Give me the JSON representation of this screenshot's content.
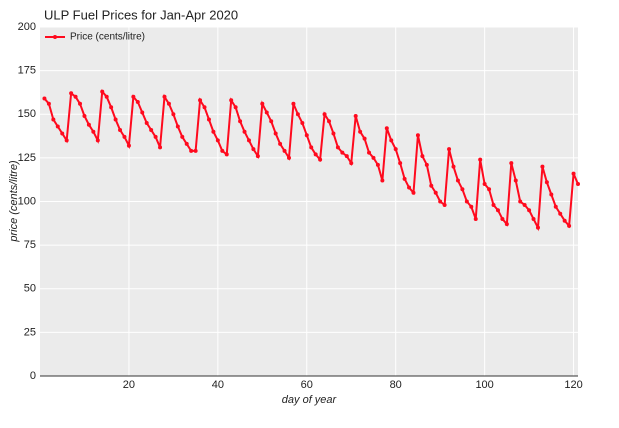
{
  "chart_data": {
    "type": "line",
    "title": "ULP Fuel Prices for Jan-Apr 2020",
    "xlabel": "day of year",
    "ylabel": "price (cents/litre)",
    "x": [
      1,
      2,
      3,
      4,
      5,
      6,
      7,
      8,
      9,
      10,
      11,
      12,
      13,
      14,
      15,
      16,
      17,
      18,
      19,
      20,
      21,
      22,
      23,
      24,
      25,
      26,
      27,
      28,
      29,
      30,
      31,
      32,
      33,
      34,
      35,
      36,
      37,
      38,
      39,
      40,
      41,
      42,
      43,
      44,
      45,
      46,
      47,
      48,
      49,
      50,
      51,
      52,
      53,
      54,
      55,
      56,
      57,
      58,
      59,
      60,
      61,
      62,
      63,
      64,
      65,
      66,
      67,
      68,
      69,
      70,
      71,
      72,
      73,
      74,
      75,
      76,
      77,
      78,
      79,
      80,
      81,
      82,
      83,
      84,
      85,
      86,
      87,
      88,
      89,
      90,
      91,
      92,
      93,
      94,
      95,
      96,
      97,
      98,
      99,
      100,
      101,
      102,
      103,
      104,
      105,
      106,
      107,
      108,
      109,
      110,
      111,
      112,
      113,
      114,
      115,
      116,
      117,
      118,
      119,
      120,
      121
    ],
    "series": [
      {
        "name": "Price (cents/litre)",
        "color": "#ff0a1e",
        "values": [
          159,
          156,
          147,
          143,
          139,
          135,
          162,
          160,
          156,
          149,
          144,
          140,
          135,
          163,
          160,
          154,
          147,
          141,
          137,
          132,
          160,
          157,
          151,
          145,
          141,
          137,
          131,
          160,
          156,
          150,
          143,
          137,
          133,
          129,
          129,
          158,
          154,
          147,
          140,
          135,
          129,
          127,
          158,
          154,
          146,
          140,
          135,
          130,
          126,
          156,
          151,
          146,
          139,
          133,
          129,
          125,
          156,
          150,
          145,
          138,
          131,
          127,
          124,
          150,
          146,
          139,
          131,
          128,
          126,
          122,
          149,
          140,
          136,
          128,
          125,
          121,
          112,
          142,
          135,
          130,
          122,
          113,
          108,
          105,
          138,
          126,
          121,
          109,
          105,
          100,
          98,
          130,
          120,
          112,
          107,
          100,
          97,
          90,
          124,
          110,
          107,
          98,
          95,
          90,
          87,
          122,
          112,
          100,
          98,
          95,
          90,
          85,
          120,
          111,
          104,
          97,
          93,
          89,
          86,
          116,
          110
        ]
      }
    ],
    "xlim": [
      0,
      121
    ],
    "ylim": [
      0,
      200
    ],
    "xticks": [
      20,
      40,
      60,
      80,
      100,
      120
    ],
    "yticks": [
      0,
      25,
      50,
      75,
      100,
      125,
      150,
      175,
      200
    ],
    "grid": true,
    "legend": "upper left"
  }
}
